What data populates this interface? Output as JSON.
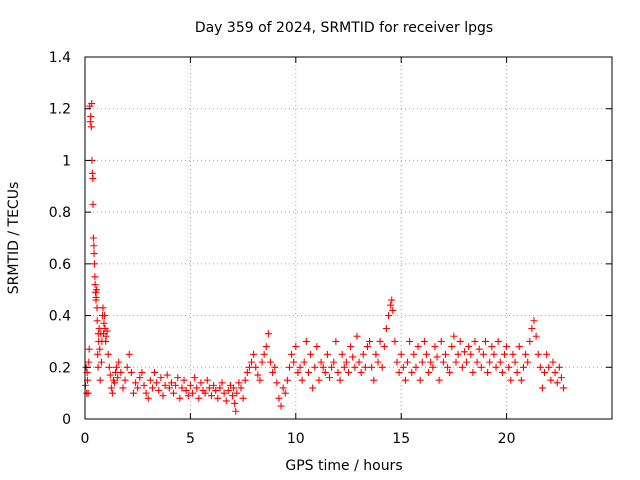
{
  "chart_data": {
    "type": "scatter",
    "title": "Day 359 of 2024, SRMTID for receiver lpgs",
    "xlabel": "GPS time / hours",
    "ylabel": "SRMTID / TECUs",
    "xlim": [
      0,
      25
    ],
    "ylim": [
      0,
      1.4
    ],
    "xticks": [
      0,
      5,
      10,
      15,
      20
    ],
    "xtick_labels": [
      "0",
      "5",
      "10",
      "15",
      "20"
    ],
    "yticks": [
      0,
      0.2,
      0.4,
      0.6,
      0.8,
      1,
      1.2,
      1.4
    ],
    "ytick_labels": [
      "0",
      "0.2",
      "0.4",
      "0.6",
      "0.8",
      "1",
      "1.2",
      "1.4"
    ],
    "grid": true,
    "marker": "+",
    "series": [
      {
        "name": "SRMTID",
        "color": "#ff0000",
        "x": [
          0.02,
          0.05,
          0.08,
          0.1,
          0.12,
          0.15,
          0.18,
          0.2,
          0.22,
          0.25,
          0.27,
          0.3,
          0.32,
          0.33,
          0.35,
          0.37,
          0.38,
          0.4,
          0.42,
          0.43,
          0.45,
          0.47,
          0.48,
          0.5,
          0.52,
          0.53,
          0.55,
          0.57,
          0.58,
          0.6,
          0.62,
          0.63,
          0.65,
          0.67,
          0.7,
          0.72,
          0.75,
          0.78,
          0.8,
          0.83,
          0.85,
          0.88,
          0.9,
          0.93,
          0.95,
          0.98,
          1.0,
          1.05,
          1.1,
          1.15,
          1.2,
          1.25,
          1.3,
          1.35,
          1.4,
          1.45,
          1.5,
          1.55,
          1.6,
          1.7,
          1.8,
          1.9,
          2.0,
          2.1,
          2.2,
          2.3,
          2.4,
          2.5,
          2.6,
          2.7,
          2.8,
          2.9,
          3.0,
          3.1,
          3.2,
          3.3,
          3.4,
          3.5,
          3.6,
          3.7,
          3.8,
          3.9,
          4.0,
          4.1,
          4.2,
          4.3,
          4.4,
          4.5,
          4.6,
          4.7,
          4.8,
          4.9,
          5.0,
          5.1,
          5.2,
          5.3,
          5.4,
          5.5,
          5.6,
          5.7,
          5.8,
          5.9,
          6.0,
          6.1,
          6.2,
          6.3,
          6.4,
          6.5,
          6.6,
          6.7,
          6.8,
          6.9,
          7.0,
          7.05,
          7.1,
          7.15,
          7.2,
          7.3,
          7.4,
          7.5,
          7.6,
          7.7,
          7.8,
          7.9,
          8.0,
          8.1,
          8.2,
          8.3,
          8.4,
          8.5,
          8.6,
          8.7,
          8.8,
          8.9,
          9.0,
          9.1,
          9.2,
          9.3,
          9.4,
          9.5,
          9.6,
          9.7,
          9.8,
          9.9,
          10.0,
          10.1,
          10.2,
          10.3,
          10.4,
          10.5,
          10.6,
          10.7,
          10.8,
          10.9,
          11.0,
          11.1,
          11.2,
          11.3,
          11.4,
          11.5,
          11.6,
          11.7,
          11.8,
          11.9,
          12.0,
          12.1,
          12.2,
          12.3,
          12.4,
          12.5,
          12.6,
          12.7,
          12.8,
          12.9,
          13.0,
          13.1,
          13.2,
          13.3,
          13.4,
          13.5,
          13.6,
          13.7,
          13.8,
          13.9,
          14.0,
          14.1,
          14.2,
          14.3,
          14.4,
          14.5,
          14.55,
          14.6,
          14.7,
          14.8,
          14.9,
          15.0,
          15.1,
          15.2,
          15.3,
          15.4,
          15.5,
          15.6,
          15.7,
          15.8,
          15.9,
          16.0,
          16.1,
          16.2,
          16.3,
          16.4,
          16.5,
          16.6,
          16.7,
          16.8,
          16.9,
          17.0,
          17.1,
          17.2,
          17.3,
          17.4,
          17.5,
          17.6,
          17.7,
          17.8,
          17.9,
          18.0,
          18.1,
          18.2,
          18.3,
          18.4,
          18.5,
          18.6,
          18.7,
          18.8,
          18.9,
          19.0,
          19.1,
          19.2,
          19.3,
          19.4,
          19.5,
          19.6,
          19.7,
          19.8,
          19.9,
          20.0,
          20.1,
          20.2,
          20.3,
          20.4,
          20.5,
          20.6,
          20.7,
          20.8,
          20.9,
          21.0,
          21.1,
          21.2,
          21.3,
          21.4,
          21.5,
          21.6,
          21.7,
          21.8,
          21.9,
          22.0,
          22.1,
          22.2,
          22.3,
          22.4,
          22.5,
          22.6,
          22.7
        ],
        "y": [
          0.13,
          0.2,
          0.1,
          0.18,
          0.15,
          0.1,
          0.22,
          0.27,
          1.21,
          1.15,
          1.17,
          1.13,
          1.22,
          1.0,
          0.95,
          0.93,
          0.83,
          0.7,
          0.67,
          0.64,
          0.6,
          0.55,
          0.52,
          0.49,
          0.46,
          0.47,
          0.5,
          0.43,
          0.38,
          0.25,
          0.2,
          0.33,
          0.3,
          0.35,
          0.27,
          0.15,
          0.33,
          0.22,
          0.3,
          0.4,
          0.43,
          0.33,
          0.37,
          0.4,
          0.35,
          0.3,
          0.32,
          0.34,
          0.25,
          0.2,
          0.17,
          0.12,
          0.1,
          0.15,
          0.14,
          0.18,
          0.2,
          0.16,
          0.22,
          0.18,
          0.12,
          0.15,
          0.2,
          0.25,
          0.18,
          0.1,
          0.14,
          0.12,
          0.16,
          0.18,
          0.13,
          0.1,
          0.08,
          0.15,
          0.12,
          0.18,
          0.14,
          0.11,
          0.16,
          0.09,
          0.13,
          0.17,
          0.12,
          0.14,
          0.1,
          0.13,
          0.16,
          0.08,
          0.12,
          0.15,
          0.11,
          0.09,
          0.13,
          0.1,
          0.16,
          0.12,
          0.08,
          0.14,
          0.11,
          0.1,
          0.15,
          0.12,
          0.09,
          0.13,
          0.11,
          0.08,
          0.12,
          0.14,
          0.1,
          0.07,
          0.11,
          0.13,
          0.09,
          0.12,
          0.06,
          0.03,
          0.1,
          0.14,
          0.12,
          0.08,
          0.15,
          0.18,
          0.2,
          0.22,
          0.25,
          0.2,
          0.17,
          0.15,
          0.22,
          0.25,
          0.28,
          0.33,
          0.22,
          0.18,
          0.2,
          0.14,
          0.08,
          0.05,
          0.12,
          0.1,
          0.15,
          0.2,
          0.25,
          0.22,
          0.28,
          0.18,
          0.2,
          0.15,
          0.22,
          0.3,
          0.18,
          0.25,
          0.12,
          0.2,
          0.28,
          0.15,
          0.22,
          0.2,
          0.18,
          0.25,
          0.16,
          0.2,
          0.22,
          0.3,
          0.18,
          0.15,
          0.25,
          0.2,
          0.22,
          0.18,
          0.28,
          0.24,
          0.2,
          0.32,
          0.22,
          0.18,
          0.25,
          0.2,
          0.28,
          0.3,
          0.2,
          0.15,
          0.25,
          0.22,
          0.3,
          0.2,
          0.28,
          0.35,
          0.4,
          0.44,
          0.46,
          0.42,
          0.3,
          0.22,
          0.18,
          0.25,
          0.2,
          0.15,
          0.22,
          0.3,
          0.18,
          0.25,
          0.2,
          0.28,
          0.15,
          0.22,
          0.3,
          0.25,
          0.18,
          0.22,
          0.2,
          0.28,
          0.24,
          0.15,
          0.3,
          0.22,
          0.25,
          0.2,
          0.18,
          0.28,
          0.32,
          0.22,
          0.25,
          0.3,
          0.2,
          0.26,
          0.22,
          0.28,
          0.25,
          0.18,
          0.3,
          0.22,
          0.27,
          0.2,
          0.25,
          0.3,
          0.18,
          0.22,
          0.28,
          0.25,
          0.2,
          0.3,
          0.22,
          0.18,
          0.25,
          0.28,
          0.2,
          0.15,
          0.25,
          0.22,
          0.18,
          0.28,
          0.15,
          0.2,
          0.25,
          0.22,
          0.3,
          0.35,
          0.38,
          0.32,
          0.25,
          0.2,
          0.12,
          0.18,
          0.25,
          0.2,
          0.15,
          0.22,
          0.18,
          0.14,
          0.2,
          0.16,
          0.12
        ]
      }
    ]
  }
}
